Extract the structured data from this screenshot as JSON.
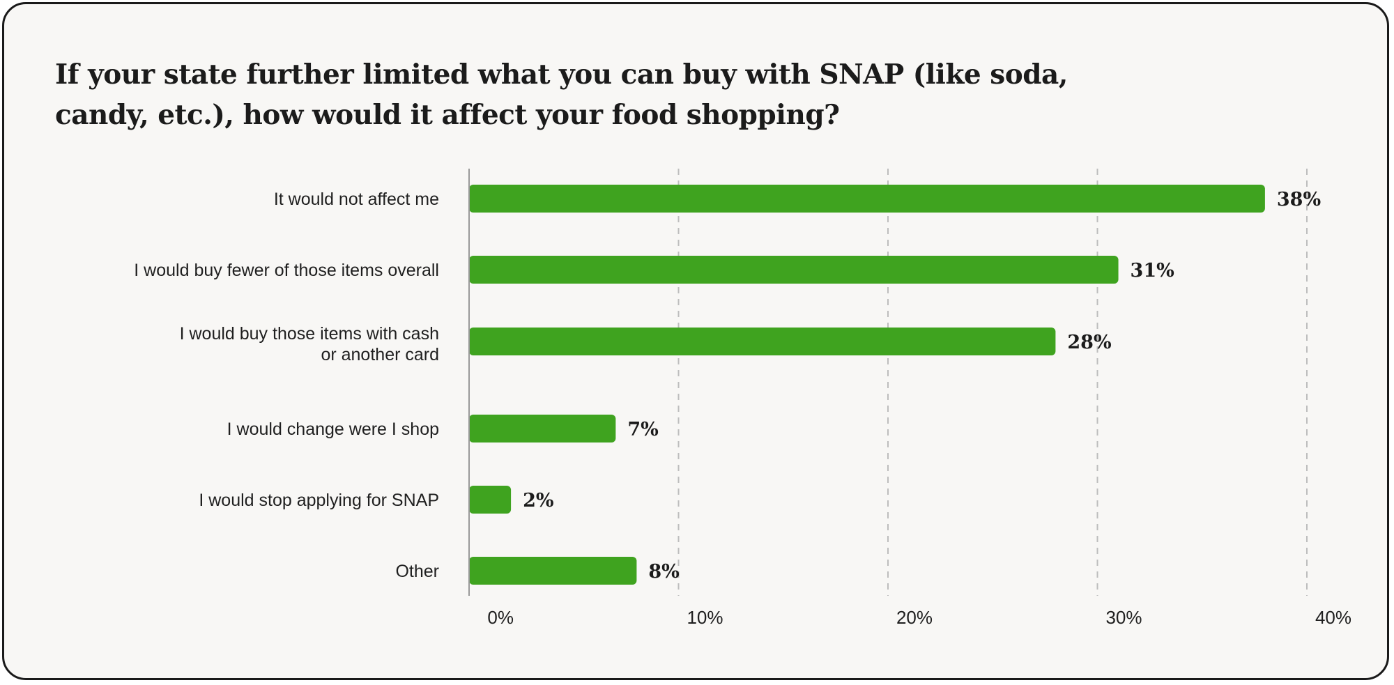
{
  "chart_data": {
    "type": "bar",
    "orientation": "horizontal",
    "title": "If your state further limited what you can buy with SNAP (like soda, candy, etc.), how would it affect your food shopping?",
    "categories": [
      "It would not affect me",
      "I would buy fewer of those items overall",
      "I would buy those items with cash or another card",
      "I would change were I shop",
      "I would stop applying for SNAP",
      "Other"
    ],
    "category_lines": [
      [
        "It would not affect me"
      ],
      [
        "I would buy fewer of those items overall"
      ],
      [
        "I would buy those items with cash",
        "or another card"
      ],
      [
        "I would change were I shop"
      ],
      [
        "I would stop applying for SNAP"
      ],
      [
        "Other"
      ]
    ],
    "values": [
      38,
      31,
      28,
      7,
      2,
      8
    ],
    "value_labels": [
      "38%",
      "31%",
      "28%",
      "7%",
      "2%",
      "8%"
    ],
    "xlim": [
      0,
      40
    ],
    "ticks": [
      0,
      10,
      20,
      30,
      40
    ],
    "tick_labels": [
      "0%",
      "10%",
      "20%",
      "30%",
      "40%"
    ],
    "grid": "vertical-dashed",
    "bar_color": "#3fa31f",
    "grid_color": "#bdbdbd",
    "axis_color": "#9a9a9a"
  }
}
